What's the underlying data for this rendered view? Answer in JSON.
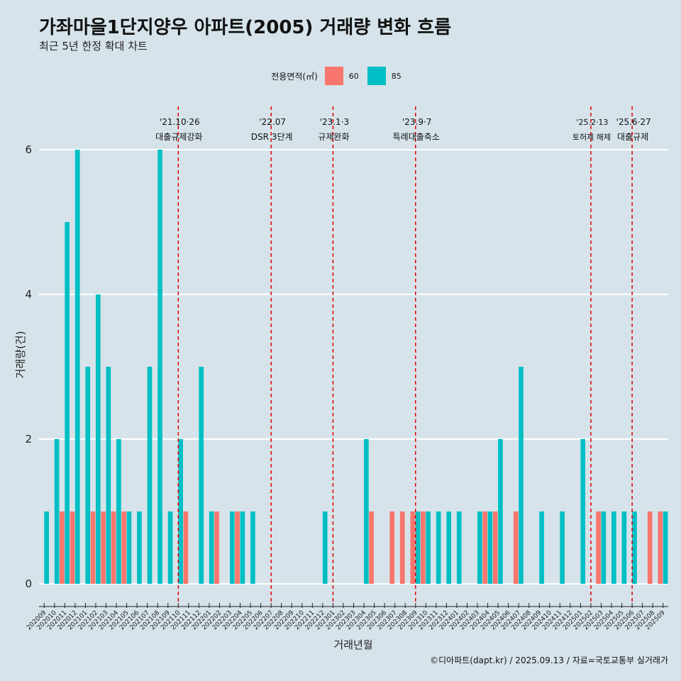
{
  "title": "가좌마을1단지양우 아파트(2005) 거래량 변화 흐름",
  "subtitle": "최근 5년 한정 확대 차트",
  "caption": "©디아파트(dapt.kr) / 2025.09.13 / 자료=국토교통부 실거래가",
  "legend": {
    "title": "전용면적(㎡)",
    "items": [
      {
        "label": "60",
        "color": "#F8766D"
      },
      {
        "label": "85",
        "color": "#00BFC4"
      }
    ]
  },
  "chart_data": {
    "type": "bar",
    "title": "가좌마을1단지양우 아파트(2005) 거래량 변화 흐름",
    "xlabel": "거래년월",
    "ylabel": "거래량(건)",
    "ylim": [
      0,
      6
    ],
    "yticks": [
      0,
      2,
      4,
      6
    ],
    "grid": true,
    "categories": [
      "202009",
      "202010",
      "202011",
      "202012",
      "202101",
      "202102",
      "202103",
      "202104",
      "202105",
      "202106",
      "202107",
      "202108",
      "202109",
      "202110",
      "202111",
      "202112",
      "202201",
      "202202",
      "202203",
      "202204",
      "202205",
      "202206",
      "202207",
      "202208",
      "202209",
      "202210",
      "202211",
      "202212",
      "202301",
      "202302",
      "202303",
      "202304",
      "202305",
      "202306",
      "202307",
      "202308",
      "202309",
      "202310",
      "202311",
      "202312",
      "202401",
      "202402",
      "202403",
      "202404",
      "202405",
      "202406",
      "202407",
      "202408",
      "202409",
      "202410",
      "202411",
      "202412",
      "202501",
      "202502",
      "202503",
      "202504",
      "202505",
      "202506",
      "202507",
      "202508",
      "202509"
    ],
    "series": [
      {
        "name": "60",
        "color": "#F8766D",
        "values": [
          0,
          0,
          1,
          1,
          0,
          1,
          1,
          1,
          1,
          0,
          0,
          0,
          0,
          0,
          1,
          0,
          0,
          1,
          0,
          1,
          0,
          0,
          0,
          0,
          0,
          0,
          0,
          0,
          0,
          0,
          0,
          0,
          1,
          0,
          1,
          1,
          1,
          1,
          0,
          0,
          0,
          0,
          0,
          1,
          1,
          0,
          1,
          0,
          0,
          0,
          0,
          0,
          0,
          0,
          1,
          0,
          0,
          0,
          0,
          1,
          1
        ]
      },
      {
        "name": "85",
        "color": "#00BFC4",
        "values": [
          1,
          2,
          5,
          6,
          3,
          4,
          3,
          2,
          1,
          1,
          3,
          6,
          1,
          2,
          0,
          3,
          1,
          0,
          1,
          1,
          1,
          0,
          0,
          0,
          0,
          0,
          0,
          1,
          0,
          0,
          0,
          2,
          0,
          0,
          0,
          0,
          1,
          1,
          1,
          1,
          1,
          0,
          1,
          1,
          2,
          0,
          3,
          0,
          1,
          0,
          1,
          0,
          2,
          0,
          1,
          1,
          1,
          1,
          0,
          0,
          1
        ]
      }
    ],
    "annotations": [
      {
        "at": "202110",
        "date": "'21.10·26",
        "label": "대출규제강화",
        "small": false
      },
      {
        "at": "202207",
        "date": "'22.07",
        "label": "DSR 3단계",
        "small": false
      },
      {
        "at": "202301",
        "date": "'23.1·3",
        "label": "규제완화",
        "small": false
      },
      {
        "at": "202309",
        "date": "'23.9·7",
        "label": "특례대출축소",
        "small": false
      },
      {
        "at": "202502",
        "date": "'25.2·13",
        "label": "토허제 해제",
        "small": true
      },
      {
        "at": "202506",
        "date": "'25.6·27",
        "label": "대출규제",
        "small": false
      }
    ]
  }
}
